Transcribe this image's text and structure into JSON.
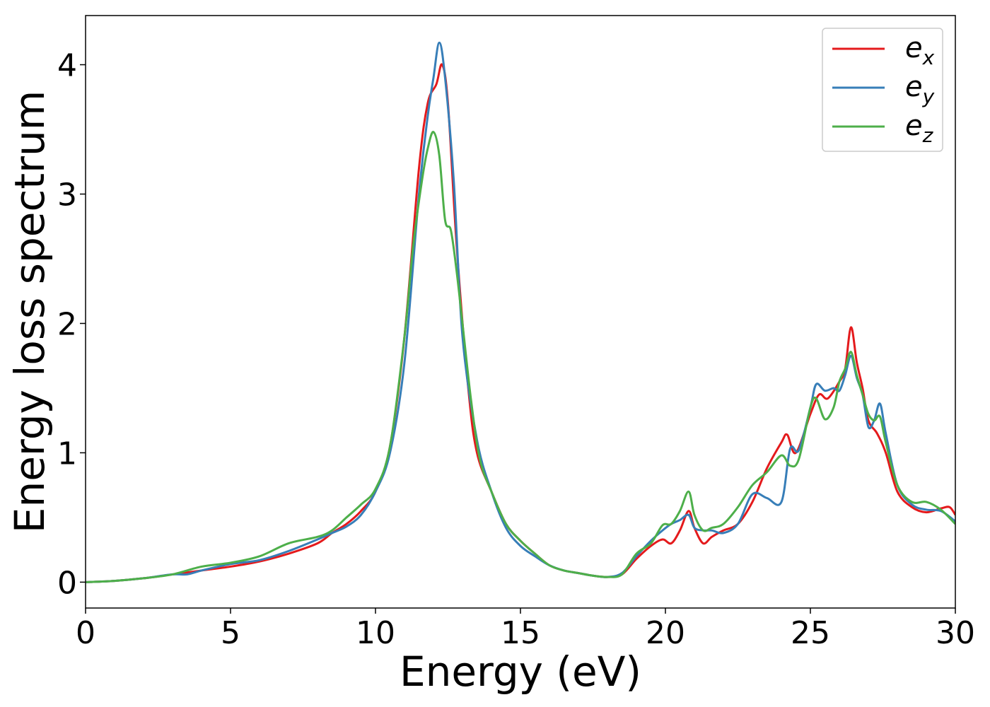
{
  "chart_data": {
    "type": "line",
    "xlabel": "Energy (eV)",
    "ylabel": "Energy loss spectrum",
    "xlim": [
      0,
      30
    ],
    "ylim": [
      -0.2,
      4.38
    ],
    "xticks": [
      0,
      5,
      10,
      15,
      20,
      25,
      30
    ],
    "yticks": [
      0,
      1,
      2,
      3,
      4
    ],
    "grid": false,
    "legend_position": "top-right",
    "series": [
      {
        "name": "ex",
        "legend_base": "e",
        "legend_sub": "x",
        "color": "#e41a1c",
        "x": [
          0,
          1,
          2,
          3,
          4,
          5,
          6,
          7,
          8,
          8.5,
          9,
          9.5,
          10,
          10.5,
          11,
          11.5,
          11.8,
          12.1,
          12.3,
          12.5,
          12.8,
          13.2,
          13.5,
          14,
          14.5,
          15,
          15.5,
          16,
          16.5,
          17,
          17.5,
          18,
          18.5,
          19,
          19.5,
          19.9,
          20.2,
          20.5,
          20.8,
          21,
          21.3,
          21.6,
          22,
          22.5,
          23,
          23.5,
          24,
          24.2,
          24.5,
          25,
          25.3,
          25.6,
          26,
          26.2,
          26.4,
          26.6,
          26.8,
          27,
          27.3,
          27.6,
          28,
          28.5,
          29,
          29.5,
          29.8,
          30
        ],
        "y": [
          0,
          0.01,
          0.03,
          0.06,
          0.09,
          0.12,
          0.16,
          0.22,
          0.3,
          0.38,
          0.45,
          0.55,
          0.7,
          1.05,
          1.9,
          3.2,
          3.7,
          3.85,
          4.0,
          3.7,
          2.6,
          1.5,
          1.0,
          0.7,
          0.45,
          0.32,
          0.22,
          0.13,
          0.09,
          0.07,
          0.05,
          0.04,
          0.06,
          0.18,
          0.28,
          0.33,
          0.3,
          0.4,
          0.55,
          0.42,
          0.3,
          0.35,
          0.4,
          0.45,
          0.62,
          0.88,
          1.08,
          1.14,
          1.0,
          1.3,
          1.45,
          1.42,
          1.55,
          1.65,
          1.97,
          1.7,
          1.5,
          1.25,
          1.15,
          1.0,
          0.7,
          0.58,
          0.54,
          0.57,
          0.58,
          0.52
        ]
      },
      {
        "name": "ey",
        "legend_base": "e",
        "legend_sub": "y",
        "color": "#377eb8",
        "x": [
          0,
          1,
          2,
          3,
          3.5,
          4,
          5,
          6,
          7,
          8,
          8.5,
          9,
          9.5,
          10,
          10.5,
          11,
          11.5,
          11.8,
          12,
          12.2,
          12.4,
          12.7,
          13,
          13.5,
          14,
          14.5,
          15,
          15.5,
          16,
          16.5,
          17,
          17.5,
          18,
          18.5,
          19,
          19.5,
          19.9,
          20.2,
          20.5,
          20.8,
          21,
          21.3,
          21.6,
          22,
          22.5,
          23,
          23.5,
          24,
          24.3,
          24.6,
          25,
          25.2,
          25.5,
          25.8,
          26,
          26.2,
          26.4,
          26.6,
          26.8,
          27,
          27.2,
          27.4,
          27.6,
          28,
          28.5,
          29,
          29.5,
          30
        ],
        "y": [
          0,
          0.01,
          0.03,
          0.06,
          0.06,
          0.09,
          0.14,
          0.17,
          0.24,
          0.33,
          0.38,
          0.43,
          0.52,
          0.7,
          1.0,
          1.7,
          3.0,
          3.6,
          3.9,
          4.17,
          3.9,
          3.1,
          1.9,
          1.1,
          0.7,
          0.42,
          0.28,
          0.2,
          0.13,
          0.09,
          0.07,
          0.05,
          0.04,
          0.07,
          0.2,
          0.32,
          0.4,
          0.45,
          0.48,
          0.52,
          0.42,
          0.4,
          0.4,
          0.38,
          0.45,
          0.68,
          0.65,
          0.62,
          1.03,
          1.02,
          1.35,
          1.53,
          1.48,
          1.5,
          1.48,
          1.6,
          1.75,
          1.58,
          1.45,
          1.2,
          1.25,
          1.38,
          1.15,
          0.75,
          0.6,
          0.56,
          0.55,
          0.47
        ]
      },
      {
        "name": "ez",
        "legend_base": "e",
        "legend_sub": "z",
        "color": "#4daf4a",
        "x": [
          0,
          1,
          2,
          3,
          4,
          5,
          6,
          7,
          8,
          8.5,
          9,
          9.5,
          10,
          10.5,
          11,
          11.3,
          11.6,
          11.8,
          12,
          12.2,
          12.4,
          12.6,
          12.8,
          13,
          13.3,
          13.6,
          14,
          14.5,
          15,
          15.5,
          16,
          16.5,
          17,
          17.5,
          18,
          18.5,
          19,
          19.5,
          19.9,
          20.2,
          20.5,
          20.8,
          21,
          21.3,
          21.6,
          22,
          22.5,
          23,
          23.5,
          24,
          24.3,
          24.6,
          25,
          25.2,
          25.5,
          25.8,
          26,
          26.2,
          26.4,
          26.6,
          26.8,
          27,
          27.2,
          27.4,
          27.6,
          28,
          28.5,
          29,
          29.5,
          30
        ],
        "y": [
          0,
          0.01,
          0.03,
          0.06,
          0.12,
          0.15,
          0.2,
          0.3,
          0.35,
          0.4,
          0.5,
          0.6,
          0.72,
          1.05,
          1.9,
          2.6,
          3.1,
          3.35,
          3.48,
          3.3,
          2.8,
          2.72,
          2.4,
          2.0,
          1.4,
          0.95,
          0.7,
          0.45,
          0.32,
          0.22,
          0.13,
          0.09,
          0.07,
          0.05,
          0.04,
          0.06,
          0.22,
          0.3,
          0.44,
          0.45,
          0.55,
          0.7,
          0.52,
          0.4,
          0.42,
          0.45,
          0.58,
          0.75,
          0.85,
          0.98,
          0.9,
          0.95,
          1.35,
          1.42,
          1.26,
          1.35,
          1.55,
          1.65,
          1.78,
          1.6,
          1.45,
          1.3,
          1.25,
          1.28,
          1.08,
          0.75,
          0.62,
          0.62,
          0.56,
          0.45
        ]
      }
    ]
  }
}
